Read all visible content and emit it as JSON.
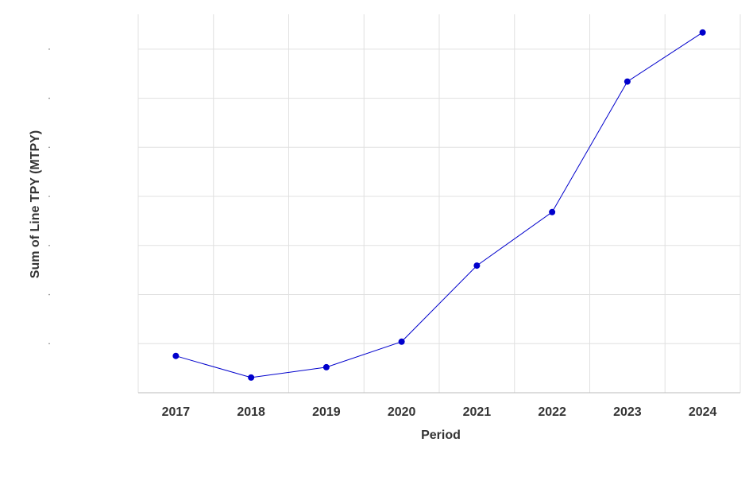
{
  "chart_data": {
    "type": "line",
    "x_label": "Period",
    "y_label": "Sum of Line TPY (MTPY)",
    "categories": [
      "2017",
      "2018",
      "2019",
      "2020",
      "2021",
      "2022",
      "2023",
      "2024"
    ],
    "series": [
      {
        "name": "Sum of Line TPY (MTPY)",
        "color": "#0000cc",
        "values": [
          0.75,
          0.31,
          0.52,
          1.04,
          2.59,
          3.68,
          6.34,
          7.34
        ]
      }
    ],
    "ylim": [
      0,
      7.71
    ],
    "yticks": [
      1,
      2,
      3,
      4,
      5,
      6,
      7
    ],
    "grid": true
  }
}
